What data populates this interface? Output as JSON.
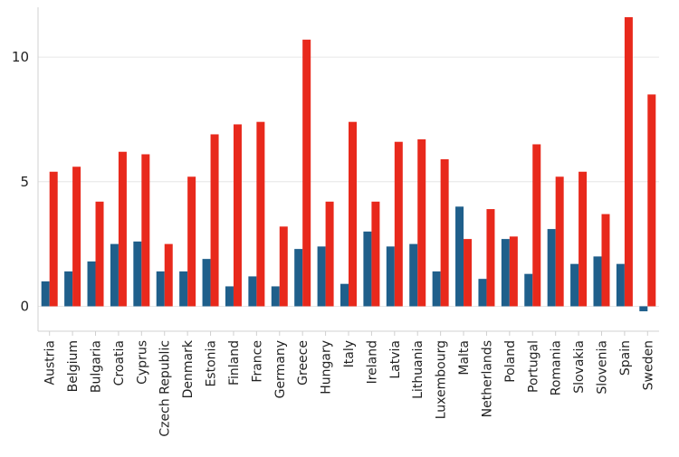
{
  "chart_data": {
    "type": "bar",
    "title": "",
    "xlabel": "",
    "ylabel": "",
    "ylim": [
      -1.0,
      12.0
    ],
    "yticks": [
      0,
      5,
      10
    ],
    "grid": true,
    "legend": "none",
    "categories": [
      "Austria",
      "Belgium",
      "Bulgaria",
      "Croatia",
      "Cyprus",
      "Czech Republic",
      "Denmark",
      "Estonia",
      "Finland",
      "France",
      "Germany",
      "Greece",
      "Hungary",
      "Italy",
      "Ireland",
      "Latvia",
      "Lithuania",
      "Luxembourg",
      "Malta",
      "Netherlands",
      "Poland",
      "Portugal",
      "Romania",
      "Slovakia",
      "Slovenia",
      "Spain",
      "Sweden"
    ],
    "series": [
      {
        "color": "#1f5f8b",
        "values": [
          1.0,
          1.4,
          1.8,
          2.5,
          2.6,
          1.4,
          1.4,
          1.9,
          0.8,
          1.2,
          0.8,
          2.3,
          2.4,
          0.9,
          3.0,
          2.4,
          2.5,
          1.4,
          4.0,
          1.1,
          2.7,
          1.3,
          3.1,
          1.7,
          2.0,
          1.7,
          -0.2
        ]
      },
      {
        "color": "#e8291c",
        "values": [
          5.4,
          5.6,
          4.2,
          6.2,
          6.1,
          2.5,
          5.2,
          6.9,
          7.3,
          7.4,
          3.2,
          10.7,
          4.2,
          7.4,
          4.2,
          6.6,
          6.7,
          5.9,
          2.7,
          3.9,
          2.8,
          6.5,
          5.2,
          5.4,
          3.7,
          11.6,
          8.5
        ]
      }
    ]
  }
}
